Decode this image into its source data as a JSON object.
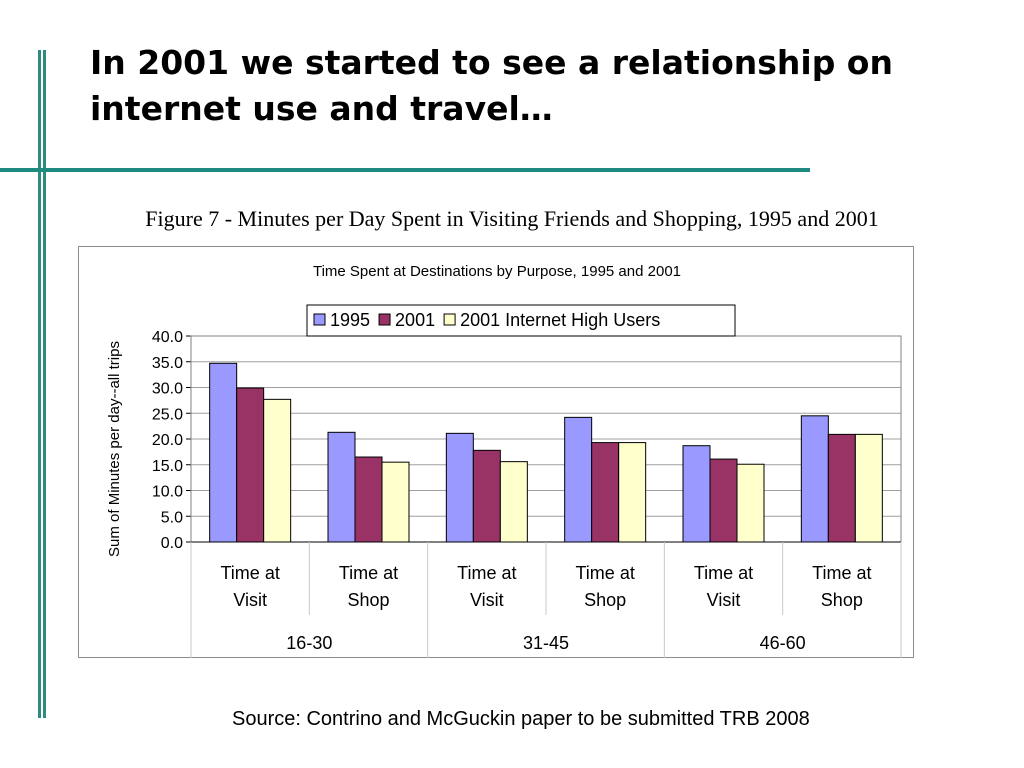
{
  "slide": {
    "title": "In 2001 we started to see a relationship on internet use and travel…",
    "figure_caption": "Figure 7 - Minutes per Day Spent in Visiting Friends and Shopping, 1995 and 2001",
    "source": "Source: Contrino and McGuckin paper to be submitted TRB 2008"
  },
  "colors": {
    "accent_bar": "#2e8b7f",
    "series": [
      "#9999ff",
      "#993366",
      "#ffffcc"
    ]
  },
  "chart_data": {
    "type": "bar",
    "title": "Time Spent at Destinations by Purpose, 1995 and 2001",
    "ylabel": "Sum of Minutes per day--all trips",
    "xlabel": "",
    "ylim": [
      0,
      40
    ],
    "yticks": [
      "40.0",
      "35.0",
      "30.0",
      "25.0",
      "20.0",
      "15.0",
      "10.0",
      "5.0",
      "0.0"
    ],
    "grid": true,
    "legend_position": "top",
    "categories": [
      {
        "line1": "Time at",
        "line2": "Visit"
      },
      {
        "line1": "Time at",
        "line2": "Shop"
      },
      {
        "line1": "Time at",
        "line2": "Visit"
      },
      {
        "line1": "Time at",
        "line2": "Shop"
      },
      {
        "line1": "Time at",
        "line2": "Visit"
      },
      {
        "line1": "Time at",
        "line2": "Shop"
      }
    ],
    "groups": [
      "16-30",
      "31-45",
      "46-60"
    ],
    "series": [
      {
        "name": "1995",
        "values": [
          34.7,
          21.3,
          21.1,
          24.2,
          18.7,
          24.5
        ]
      },
      {
        "name": "2001",
        "values": [
          29.9,
          16.5,
          17.8,
          19.3,
          16.1,
          20.9
        ]
      },
      {
        "name": "2001 Internet High Users",
        "values": [
          27.7,
          15.5,
          15.6,
          19.3,
          15.1,
          20.9
        ]
      }
    ]
  }
}
